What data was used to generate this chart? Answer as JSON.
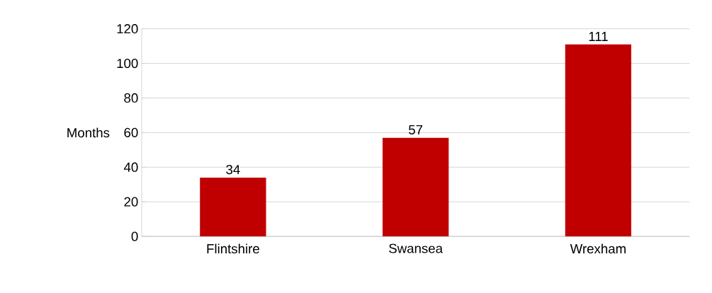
{
  "chart_data": {
    "type": "bar",
    "ylabel": "Months",
    "categories": [
      "Flintshire",
      "Swansea",
      "Wrexham"
    ],
    "values": [
      34,
      57,
      111
    ],
    "color": "#c00000",
    "ylim": [
      0,
      120
    ],
    "yticks": [
      0,
      20,
      40,
      60,
      80,
      100,
      120
    ],
    "grid": "y",
    "data_labels": true
  }
}
